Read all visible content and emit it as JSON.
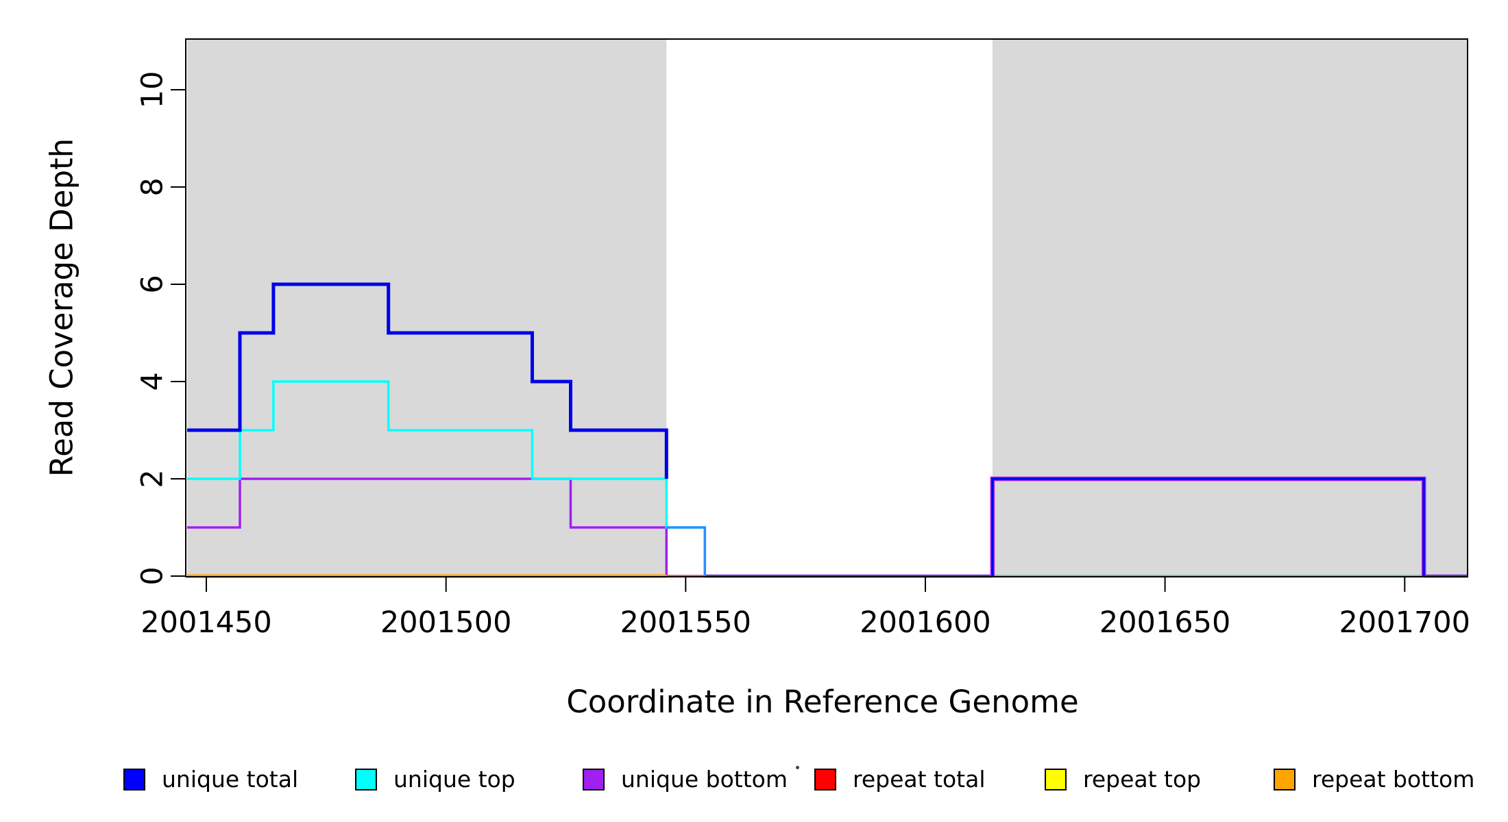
{
  "chart_data": {
    "type": "line",
    "subtype": "step-coverage",
    "title": "",
    "xlabel": "Coordinate in Reference Genome",
    "ylabel": "Read Coverage Depth",
    "xlim": [
      2001446,
      2001713
    ],
    "ylim": [
      0,
      11
    ],
    "grid": false,
    "x_ticks": [
      2001450,
      2001500,
      2001550,
      2001600,
      2001650,
      2001700
    ],
    "x_tick_labels": [
      "2001450",
      "2001500",
      "2001550",
      "2001600",
      "2001650",
      "2001700"
    ],
    "y_ticks": [
      0,
      2,
      4,
      6,
      8,
      10
    ],
    "y_tick_labels": [
      "0",
      "2",
      "4",
      "6",
      "8",
      "10"
    ],
    "repeat_regions": [
      [
        2001446,
        2001546
      ],
      [
        2001614,
        2001713
      ]
    ],
    "series": [
      {
        "name": "unique_total",
        "label": "unique total",
        "color": "#0000FF",
        "points": [
          [
            2001446,
            3
          ],
          [
            2001457,
            5
          ],
          [
            2001464,
            6
          ],
          [
            2001488,
            5
          ],
          [
            2001518,
            4
          ],
          [
            2001526,
            3
          ],
          [
            2001546,
            1
          ],
          [
            2001554,
            0
          ],
          [
            2001614,
            2
          ],
          [
            2001704,
            0
          ],
          [
            2001713,
            0
          ]
        ]
      },
      {
        "name": "unique_top",
        "label": "unique top",
        "color": "#00FFFF",
        "points": [
          [
            2001446,
            2
          ],
          [
            2001457,
            3
          ],
          [
            2001464,
            4
          ],
          [
            2001488,
            3
          ],
          [
            2001518,
            2
          ],
          [
            2001546,
            1
          ],
          [
            2001554,
            0
          ],
          [
            2001713,
            0
          ]
        ]
      },
      {
        "name": "unique_bottom",
        "label": "unique bottom",
        "color": "#A020F0",
        "points": [
          [
            2001446,
            1
          ],
          [
            2001457,
            2
          ],
          [
            2001526,
            1
          ],
          [
            2001546,
            0
          ],
          [
            2001614,
            2
          ],
          [
            2001704,
            0
          ],
          [
            2001713,
            0
          ]
        ]
      },
      {
        "name": "repeat_total",
        "label": "repeat total",
        "color": "#FF0000",
        "points": [
          [
            2001446,
            0
          ],
          [
            2001713,
            0
          ]
        ]
      },
      {
        "name": "repeat_top",
        "label": "repeat top",
        "color": "#FFFF00",
        "points": [
          [
            2001446,
            0
          ],
          [
            2001713,
            0
          ]
        ]
      },
      {
        "name": "repeat_bottom",
        "label": "repeat bottom",
        "color": "#FFA500",
        "points": [
          [
            2001446,
            0
          ],
          [
            2001546,
            0
          ]
        ]
      }
    ],
    "legend": {
      "position": "bottom",
      "items": [
        {
          "label": "unique total",
          "color": "#0000FF"
        },
        {
          "label": "unique top",
          "color": "#00FFFF"
        },
        {
          "label": "unique bottom",
          "color": "#A020F0"
        },
        {
          "label": "repeat total",
          "color": "#FF0000"
        },
        {
          "label": "repeat top",
          "color": "#FFFF00"
        },
        {
          "label": "repeat bottom",
          "color": "#FFA500"
        }
      ]
    }
  },
  "colors": {
    "background": "#FFFFFF",
    "repeat_region_fill": "#D9D9D9",
    "axis": "#000000",
    "blue_line": "#0101E8",
    "dodger_blue_segment": "#2E8CFF",
    "cyan_line": "#00FFFF",
    "purple_line": "#A020F0",
    "red_zero_line": "#FF4D5E",
    "yellow_line": "#FFFF00",
    "orange_line": "#FFA500",
    "teal_zero_line": "#1BD8AE",
    "violet_zero_line": "#6B2BE8"
  }
}
